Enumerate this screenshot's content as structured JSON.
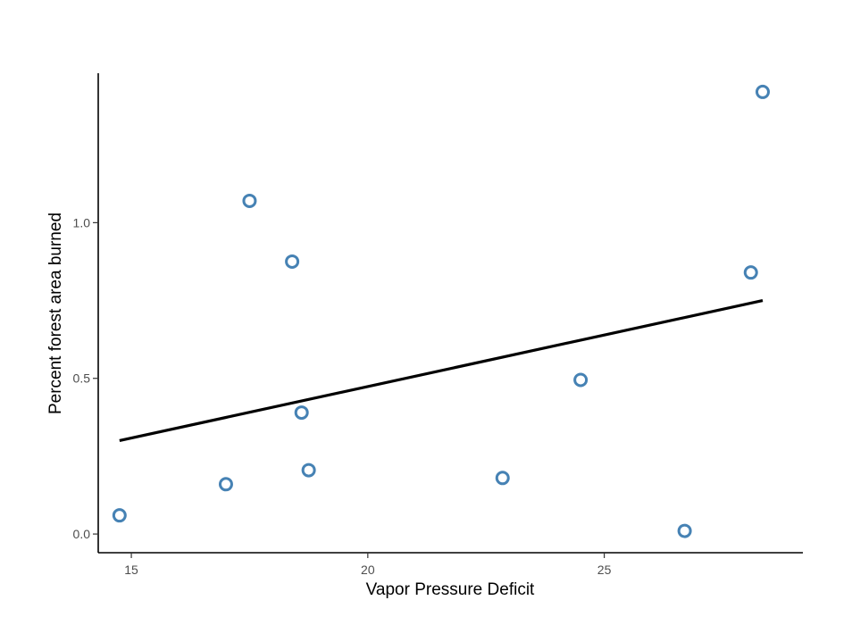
{
  "chart_data": {
    "type": "scatter",
    "title": "",
    "xlabel": "Vapor Pressure Deficit",
    "ylabel": "Percent forest area burned",
    "xlim": [
      14.3,
      29.2
    ],
    "ylim": [
      -0.06,
      1.48
    ],
    "x_ticks": [
      15,
      20,
      25
    ],
    "x_tick_labels": [
      "15",
      "20",
      "25"
    ],
    "y_ticks": [
      0.0,
      0.5,
      1.0
    ],
    "y_tick_labels": [
      "0.0",
      "0.5",
      "1.0"
    ],
    "grid": false,
    "legend": "none",
    "marker": "hollow-circle",
    "point_color": "#4682B4",
    "line_color": "#000000",
    "points": [
      {
        "x": 14.75,
        "y": 0.06
      },
      {
        "x": 17.0,
        "y": 0.16
      },
      {
        "x": 17.5,
        "y": 1.07
      },
      {
        "x": 18.4,
        "y": 0.875
      },
      {
        "x": 18.6,
        "y": 0.39
      },
      {
        "x": 18.75,
        "y": 0.205
      },
      {
        "x": 22.85,
        "y": 0.18
      },
      {
        "x": 24.5,
        "y": 0.495
      },
      {
        "x": 26.7,
        "y": 0.01
      },
      {
        "x": 28.1,
        "y": 0.84
      },
      {
        "x": 28.35,
        "y": 1.42
      }
    ],
    "fit_line": {
      "x": [
        14.75,
        28.35
      ],
      "y": [
        0.3,
        0.75
      ]
    }
  }
}
